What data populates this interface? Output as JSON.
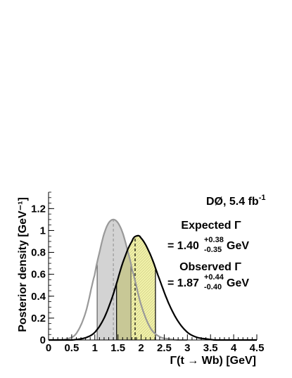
{
  "chart_data": {
    "type": "area",
    "xlabel": "Γ(t → Wb) [GeV]",
    "ylabel": "Posterior density [GeV⁻¹]",
    "xlim": [
      0,
      4.5
    ],
    "ylim": [
      0,
      1.35
    ],
    "x_ticks": [
      {
        "value": 0,
        "label": "0"
      },
      {
        "value": 0.5,
        "label": "0.5"
      },
      {
        "value": 1,
        "label": "1"
      },
      {
        "value": 1.5,
        "label": "1.5"
      },
      {
        "value": 2,
        "label": "2"
      },
      {
        "value": 2.5,
        "label": "2.5"
      },
      {
        "value": 3,
        "label": "3"
      },
      {
        "value": 3.5,
        "label": "3.5"
      },
      {
        "value": 4,
        "label": "4"
      },
      {
        "value": 4.5,
        "label": "4.5"
      }
    ],
    "y_ticks": [
      {
        "value": 0,
        "label": "0"
      },
      {
        "value": 0.2,
        "label": "0.2"
      },
      {
        "value": 0.4,
        "label": "0.4"
      },
      {
        "value": 0.6,
        "label": "0.6"
      },
      {
        "value": 0.8,
        "label": "0.8"
      },
      {
        "value": 1,
        "label": "1"
      },
      {
        "value": 1.2,
        "label": "1.2"
      }
    ],
    "grid": false,
    "series": [
      {
        "role": "expected",
        "color": "#999999",
        "band_fill": "#d3d3d3",
        "x": [
          0.0,
          0.2,
          0.4,
          0.6,
          0.8,
          1.0,
          1.1,
          1.2,
          1.3,
          1.4,
          1.5,
          1.6,
          1.7,
          1.8,
          2.0,
          2.2,
          2.4,
          2.6,
          2.8,
          3.0
        ],
        "y": [
          0.0,
          0.0,
          0.01,
          0.06,
          0.25,
          0.6,
          0.8,
          0.97,
          1.07,
          1.1,
          1.07,
          0.98,
          0.83,
          0.65,
          0.32,
          0.11,
          0.03,
          0.01,
          0.0,
          0.0
        ],
        "peak": 1.4,
        "band": [
          1.05,
          1.78
        ]
      },
      {
        "role": "observed",
        "color": "#000000",
        "band_fill": "#f0f0a8",
        "x": [
          0.0,
          0.5,
          0.8,
          1.0,
          1.2,
          1.4,
          1.6,
          1.8,
          1.9,
          2.0,
          2.2,
          2.4,
          2.6,
          2.8,
          3.0,
          3.2,
          3.4,
          3.6,
          4.0,
          4.5
        ],
        "y": [
          0.0,
          0.0,
          0.02,
          0.07,
          0.2,
          0.42,
          0.7,
          0.9,
          0.95,
          0.93,
          0.78,
          0.55,
          0.33,
          0.17,
          0.07,
          0.025,
          0.01,
          0.0,
          0.0,
          0.0
        ],
        "peak": 1.87,
        "band": [
          1.47,
          2.31
        ]
      }
    ],
    "overlap_fill": "#c8c896",
    "annotations": {
      "experiment": "DØ, 5.4 fb",
      "experiment_sup": "-1",
      "expected_label": "Expected Γ",
      "expected_value": "= 1.40",
      "expected_plus": "+0.38",
      "expected_minus": "-0.35",
      "expected_unit": "GeV",
      "observed_label": "Observed Γ",
      "observed_value": "= 1.87",
      "observed_plus": "+0.44",
      "observed_minus": "-0.40",
      "observed_unit": "GeV"
    }
  }
}
